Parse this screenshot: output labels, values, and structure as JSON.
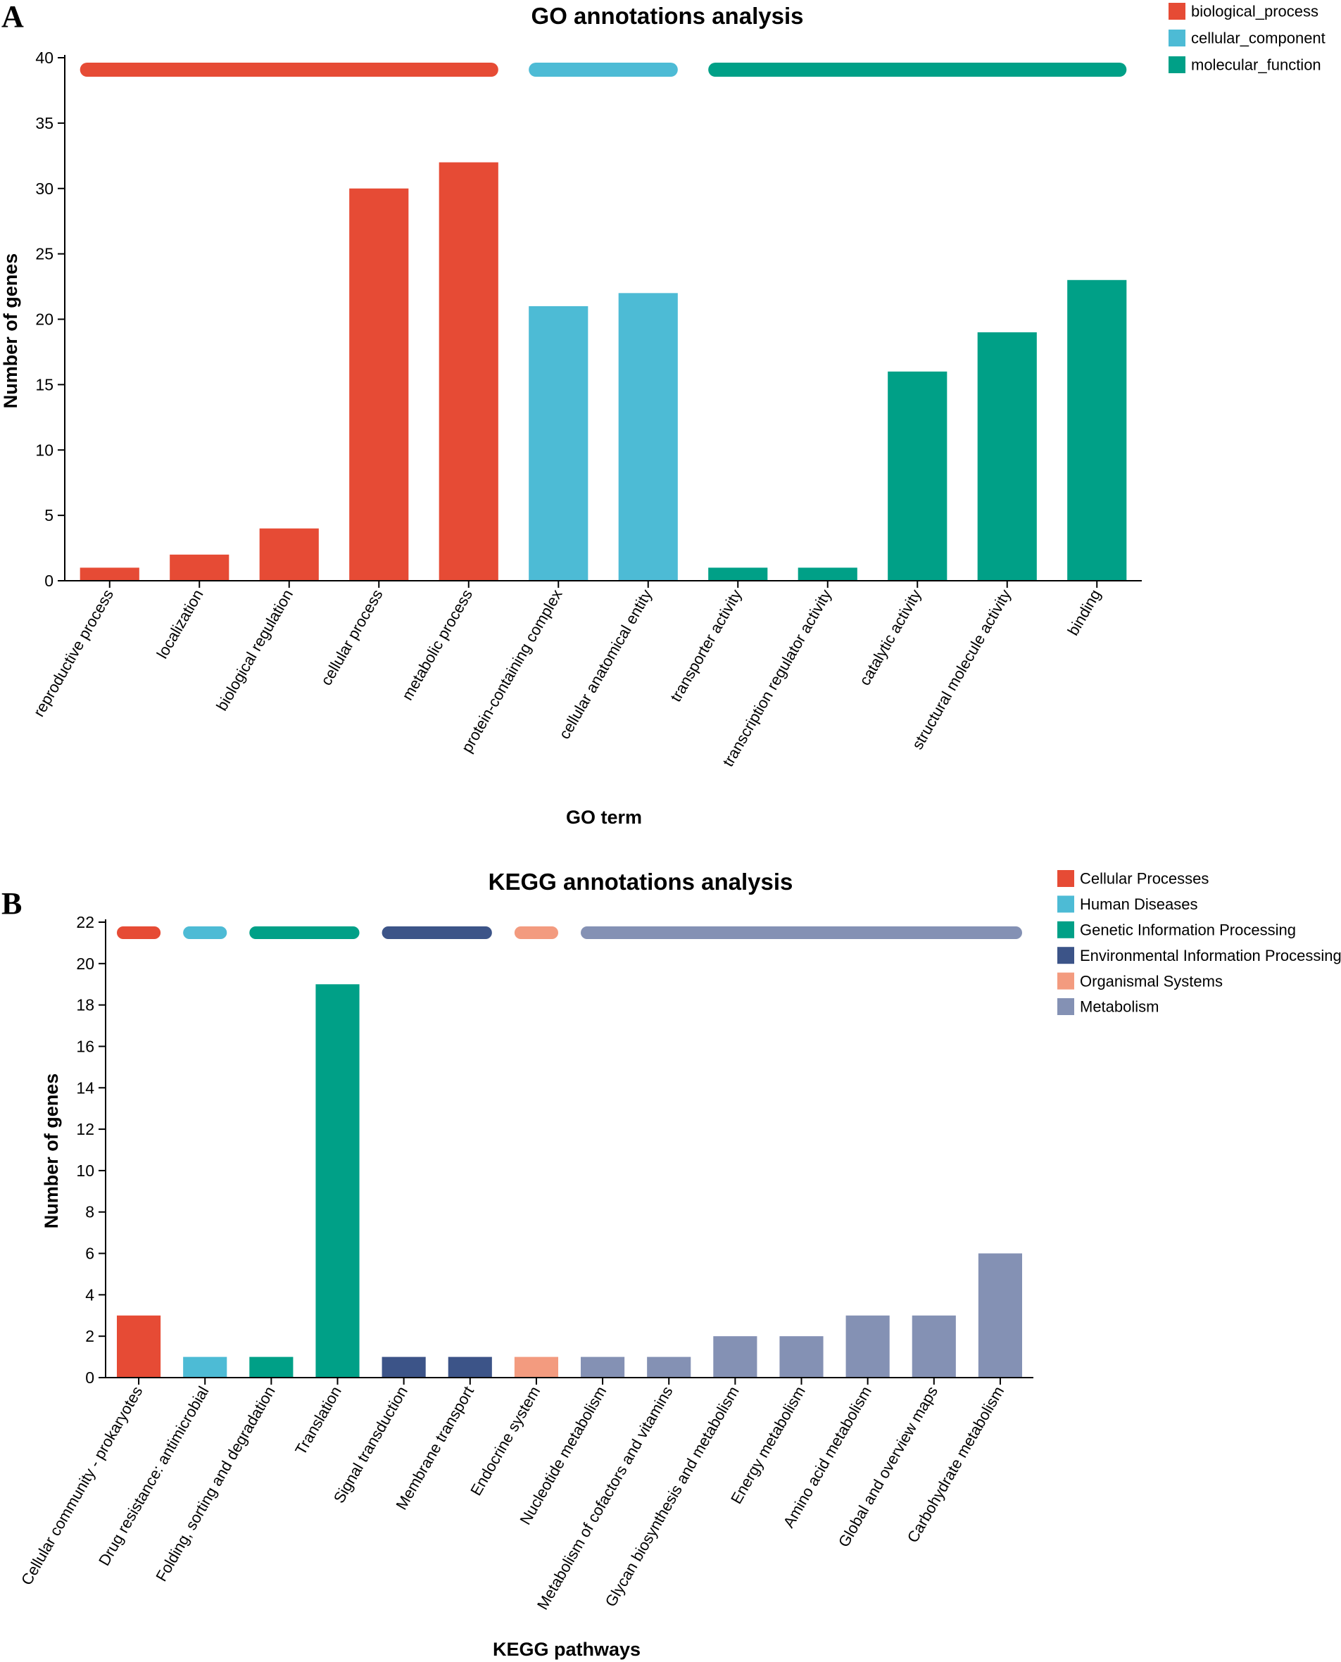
{
  "chart_data": [
    {
      "panel": "A",
      "type": "bar",
      "title": "GO annotations analysis",
      "xlabel": "GO term",
      "ylabel": "Number of genes",
      "ylim": [
        0,
        40
      ],
      "yticks": [
        0,
        5,
        10,
        15,
        20,
        25,
        30,
        35,
        40
      ],
      "categories": [
        "reproductive process",
        "localization",
        "biological regulation",
        "cellular process",
        "metabolic process",
        "protein-containing complex",
        "cellular anatomical entity",
        "transporter activity",
        "transcription regulator activity",
        "catalytic activity",
        "structural molecule activity",
        "binding"
      ],
      "values": [
        1,
        2,
        4,
        30,
        32,
        21,
        22,
        1,
        1,
        16,
        19,
        23
      ],
      "groups": [
        "biological_process",
        "biological_process",
        "biological_process",
        "biological_process",
        "biological_process",
        "cellular_component",
        "cellular_component",
        "molecular_function",
        "molecular_function",
        "molecular_function",
        "molecular_function",
        "molecular_function"
      ],
      "legend": [
        {
          "name": "biological_process",
          "color": "#E64B35"
        },
        {
          "name": "cellular_component",
          "color": "#4DBBD5"
        },
        {
          "name": "molecular_function",
          "color": "#00A087"
        }
      ],
      "legend_position": "top-right",
      "grid": false
    },
    {
      "panel": "B",
      "type": "bar",
      "title": "KEGG annotations analysis",
      "xlabel": "KEGG pathways",
      "ylabel": "Number of genes",
      "ylim": [
        0,
        22
      ],
      "yticks": [
        0,
        2,
        4,
        6,
        8,
        10,
        12,
        14,
        16,
        18,
        20,
        22
      ],
      "categories": [
        "Cellular community - prokaryotes",
        "Drug resistance: antimicrobial",
        "Folding, sorting and degradation",
        "Translation",
        "Signal transduction",
        "Membrane transport",
        "Endocrine system",
        "Nucleotide metabolism",
        "Metabolism of cofactors and vitamins",
        "Glycan biosynthesis and metabolism",
        "Energy metabolism",
        "Amino acid metabolism",
        "Global and overview maps",
        "Carbohydrate metabolism"
      ],
      "values": [
        3,
        1,
        1,
        19,
        1,
        1,
        1,
        1,
        1,
        2,
        2,
        3,
        3,
        6
      ],
      "groups": [
        "Cellular Processes",
        "Human Diseases",
        "Genetic Information Processing",
        "Genetic Information Processing",
        "Environmental Information Processing",
        "Environmental Information Processing",
        "Organismal Systems",
        "Metabolism",
        "Metabolism",
        "Metabolism",
        "Metabolism",
        "Metabolism",
        "Metabolism",
        "Metabolism"
      ],
      "legend": [
        {
          "name": "Cellular Processes",
          "color": "#E64B35"
        },
        {
          "name": "Human Diseases",
          "color": "#4DBBD5"
        },
        {
          "name": "Genetic Information Processing",
          "color": "#00A087"
        },
        {
          "name": "Environmental Information Processing",
          "color": "#3C5488"
        },
        {
          "name": "Organismal Systems",
          "color": "#F39B7F"
        },
        {
          "name": "Metabolism",
          "color": "#8491B4"
        }
      ],
      "legend_position": "top-right",
      "grid": false
    }
  ]
}
